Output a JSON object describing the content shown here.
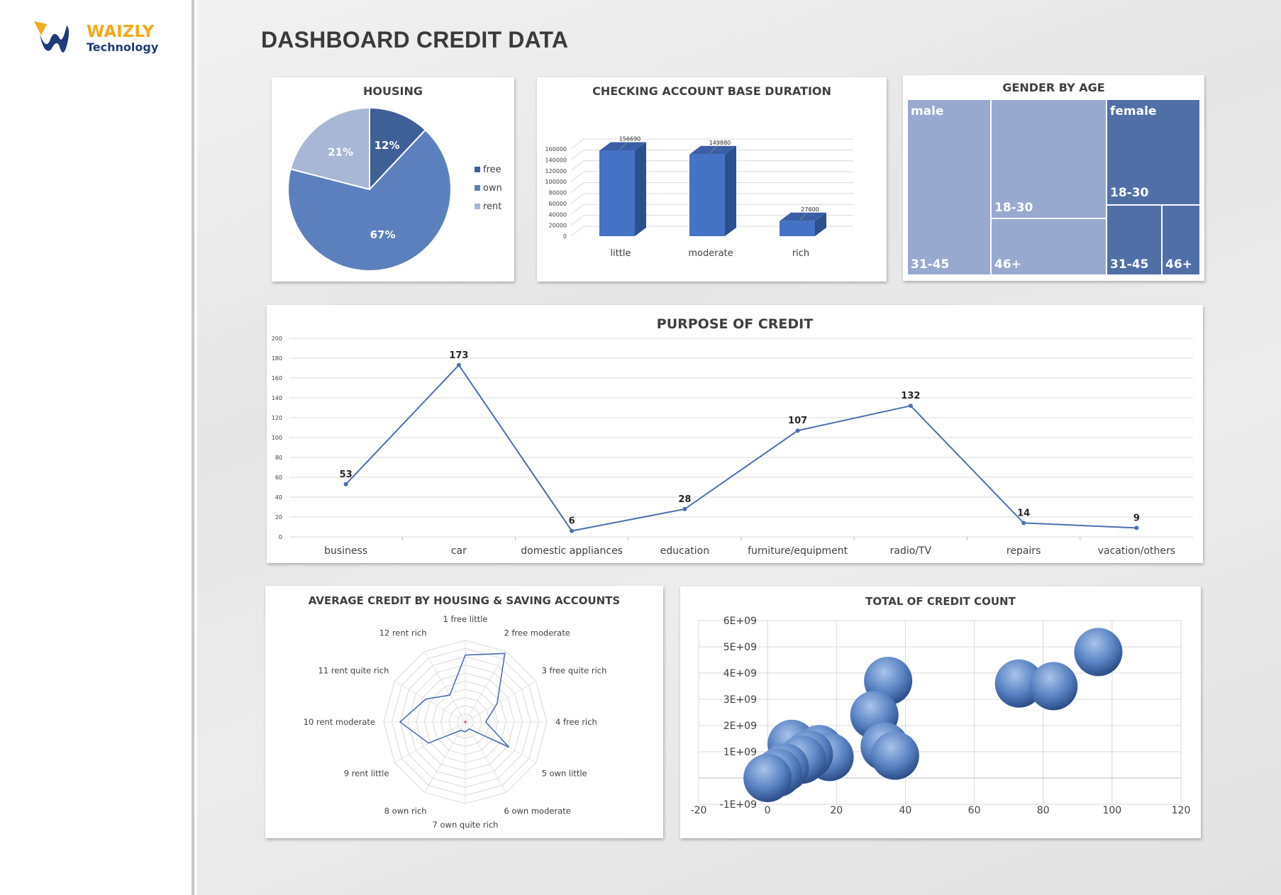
{
  "brand": {
    "name": "WAIZLY",
    "sub": "Technology",
    "colors": {
      "gold": "#f5a81c",
      "navy": "#1d3a7a"
    }
  },
  "page": {
    "title": "DASHBOARD CREDIT DATA"
  },
  "colors": {
    "dark": "#3f5f97",
    "mid": "#5b80bd",
    "light": "#a7b7d5",
    "tm_male": "#97a9ce",
    "tm_female": "#4f6fa6",
    "line": "#4a70b0"
  },
  "chart_data": [
    {
      "id": "housing",
      "type": "pie",
      "title": "HOUSING",
      "categories": [
        "free",
        "own",
        "rent"
      ],
      "values": [
        12,
        67,
        21
      ],
      "labels": [
        "12%",
        "67%",
        "21%"
      ],
      "legend": "right"
    },
    {
      "id": "checking",
      "type": "bar",
      "title": "CHECKING ACCOUNT BASE DURATION",
      "categories": [
        "little",
        "moderate",
        "rich"
      ],
      "values": [
        156690,
        149880,
        27600
      ],
      "data_labels": [
        "156690",
        "149880",
        "27600"
      ],
      "yticks": [
        "0",
        "20000",
        "40000",
        "60000",
        "80000",
        "100000",
        "120000",
        "140000",
        "160000"
      ],
      "ylim": [
        0,
        160000
      ]
    },
    {
      "id": "gender",
      "type": "treemap",
      "title": "GENDER BY AGE",
      "groups": [
        {
          "name": "male",
          "children": [
            "31-45",
            "18-30",
            "46+"
          ]
        },
        {
          "name": "female",
          "children": [
            "18-30",
            "31-45",
            "46+"
          ]
        }
      ]
    },
    {
      "id": "purpose",
      "type": "line",
      "title": "PURPOSE OF CREDIT",
      "categories": [
        "business",
        "car",
        "domestic appliances",
        "education",
        "furniture/equipment",
        "radio/TV",
        "repairs",
        "vacation/others"
      ],
      "values": [
        53,
        173,
        6,
        28,
        107,
        132,
        14,
        9
      ],
      "data_labels": [
        "53",
        "173",
        "6",
        "28",
        "107",
        "132",
        "14",
        "9"
      ],
      "yticks": [
        "0",
        "20",
        "40",
        "60",
        "80",
        "100",
        "120",
        "140",
        "160",
        "180",
        "200"
      ],
      "ylim": [
        0,
        200
      ]
    },
    {
      "id": "radar",
      "type": "radar",
      "title": "AVERAGE CREDIT BY HOUSING & SAVING ACCOUNTS",
      "categories": [
        "1 free little",
        "2 free moderate",
        "3 free quite rich",
        "4 free rich",
        "5 own little",
        "6 own moderate",
        "7 own quite rich",
        "8 own rich",
        "9 rent little",
        "10 rent moderate",
        "11 rent quite rich",
        "12 rent rich"
      ],
      "values": [
        0.82,
        0.97,
        0.45,
        0.25,
        0.62,
        0.1,
        0.12,
        0.12,
        0.52,
        0.8,
        0.56,
        0.38
      ],
      "rings": 10
    },
    {
      "id": "bubble",
      "type": "bubble",
      "title": "TOTAL OF CREDIT COUNT",
      "xticks": [
        "-20",
        "0",
        "20",
        "40",
        "60",
        "80",
        "100",
        "120"
      ],
      "yticks": [
        "-1E+09",
        "0",
        "1E+09",
        "2E+09",
        "3E+09",
        "4E+09",
        "5E+09",
        "6E+09"
      ],
      "xlim": [
        -20,
        120
      ],
      "ylim": [
        -1000000000,
        6000000000
      ],
      "points": [
        {
          "x": 96,
          "y": 4800000000
        },
        {
          "x": 73,
          "y": 3600000000
        },
        {
          "x": 83,
          "y": 3500000000
        },
        {
          "x": 35,
          "y": 3700000000
        },
        {
          "x": 31,
          "y": 2400000000
        },
        {
          "x": 34,
          "y": 1200000000
        },
        {
          "x": 37,
          "y": 850000000
        },
        {
          "x": 7,
          "y": 1300000000
        },
        {
          "x": 15,
          "y": 1100000000
        },
        {
          "x": 18,
          "y": 800000000
        },
        {
          "x": 12,
          "y": 900000000
        },
        {
          "x": 10,
          "y": 700000000
        },
        {
          "x": 5,
          "y": 400000000
        },
        {
          "x": 3,
          "y": 200000000
        },
        {
          "x": 0,
          "y": 0
        }
      ]
    }
  ]
}
